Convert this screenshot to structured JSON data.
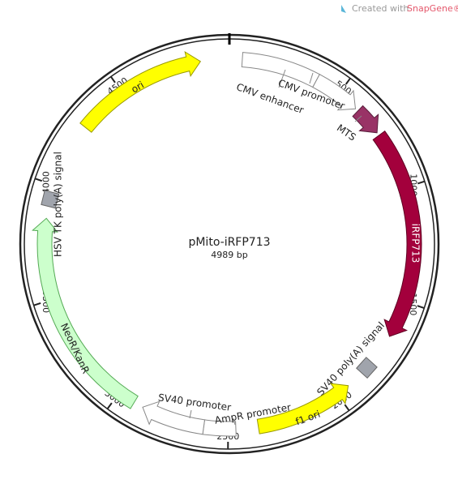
{
  "header": {
    "credit": [
      "Created with",
      "SnapGene®"
    ]
  },
  "map": {
    "name": "pMito-iRFP713",
    "size": "4989 bp",
    "ticks": [
      "500",
      "1000",
      "1500",
      "2000",
      "2500",
      "3000",
      "3500",
      "4000",
      "4500"
    ],
    "features": [
      {
        "label": "CMV enhancer"
      },
      {
        "label": "CMV promoter"
      },
      {
        "label": "MTS"
      },
      {
        "label": "iRFP713"
      },
      {
        "label": "SV40 poly(A) signal"
      },
      {
        "label": "f1 ori"
      },
      {
        "label": "AmpR promoter"
      },
      {
        "label": "SV40 promoter"
      },
      {
        "label": "NeoR/KanR"
      },
      {
        "label": "HSV TK poly(A) signal"
      },
      {
        "label": "ori"
      }
    ]
  }
}
